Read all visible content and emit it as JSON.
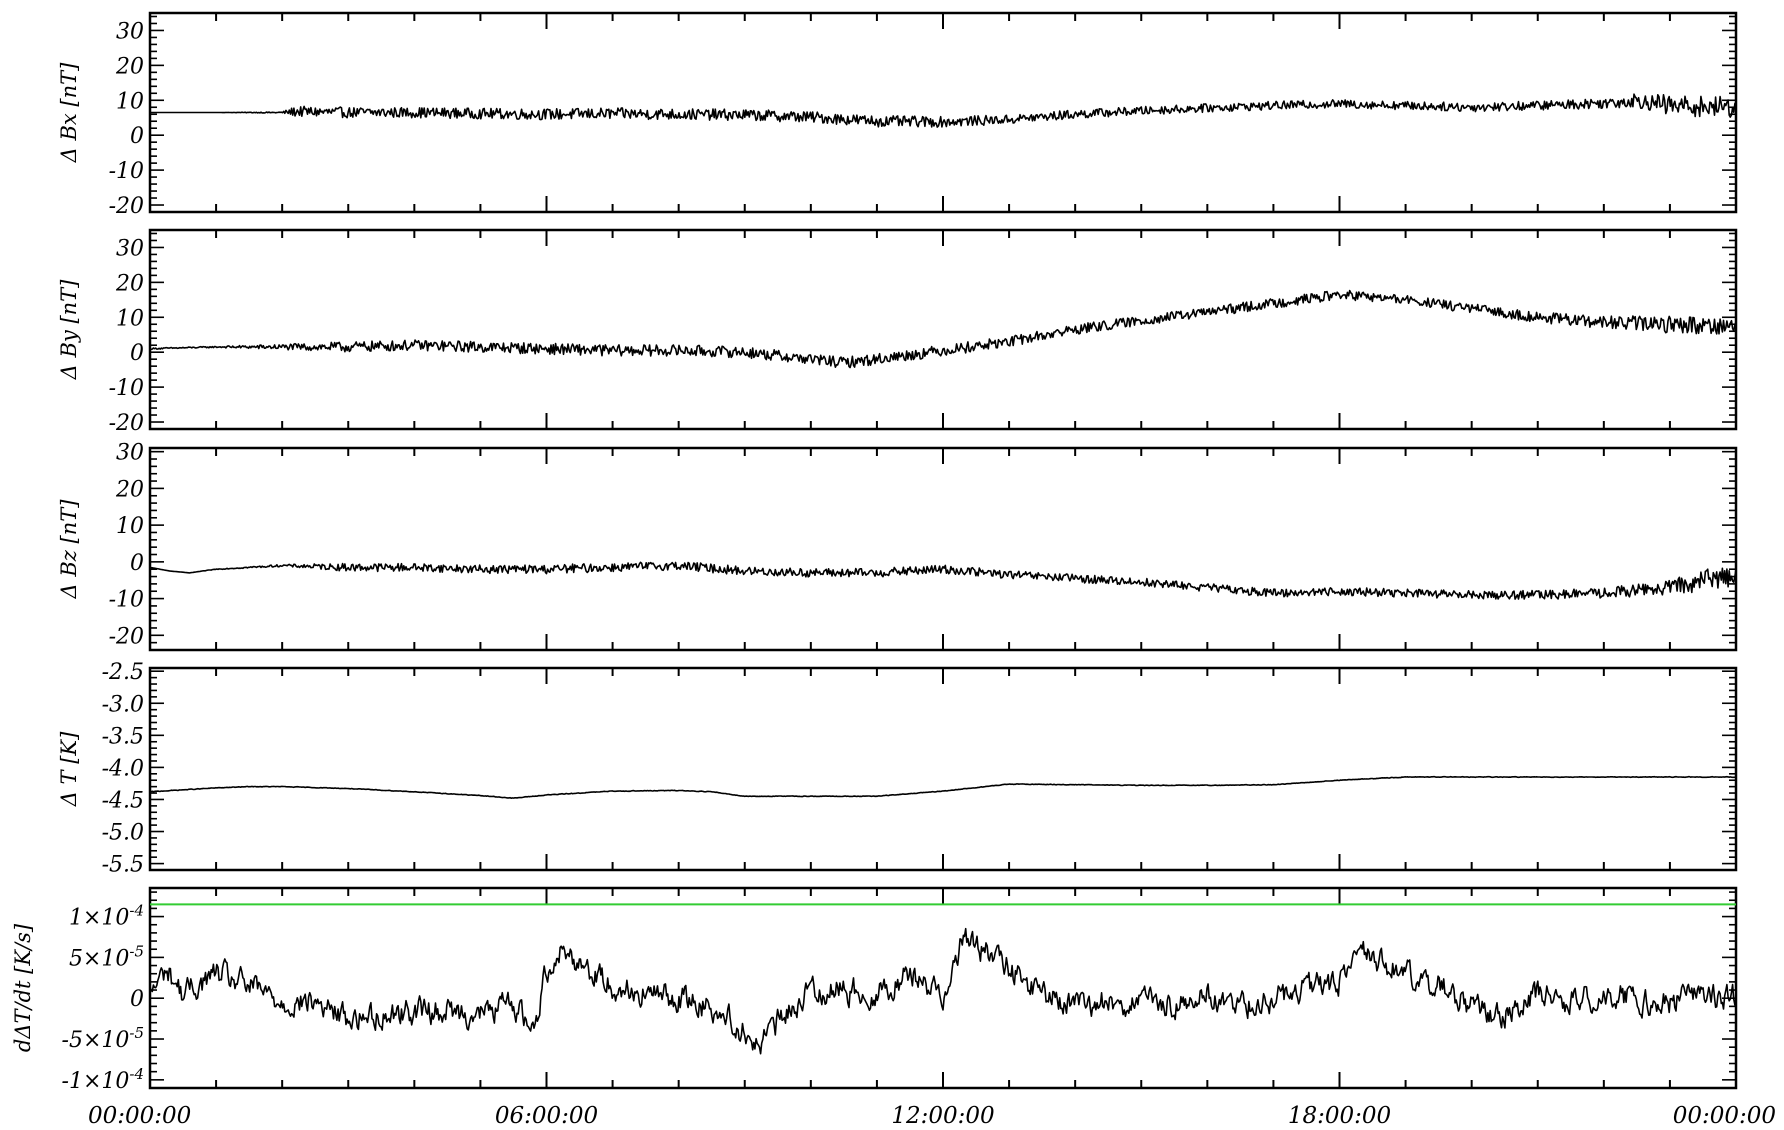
{
  "chart_data": [
    {
      "type": "line",
      "ylabel": "Δ Bx [nT]",
      "ylim": [
        -22,
        35
      ],
      "yticks": [
        {
          "value": 30,
          "label": "30"
        },
        {
          "value": 20,
          "label": "20"
        },
        {
          "value": 10,
          "label": "10"
        },
        {
          "value": 0,
          "label": "0"
        },
        {
          "value": -10,
          "label": "-10"
        },
        {
          "value": -20,
          "label": "-20"
        }
      ],
      "series": [
        {
          "x_hours": [
            0,
            1,
            2,
            2.2,
            3,
            4,
            5,
            6,
            7,
            8,
            9,
            10,
            11,
            12,
            13,
            14,
            15,
            16,
            17,
            18,
            19,
            20,
            21,
            22,
            22.5,
            23,
            24
          ],
          "values": [
            6.5,
            6.5,
            6.5,
            6.8,
            6.5,
            6.5,
            6.2,
            6,
            6.2,
            6,
            5.8,
            5.2,
            4,
            3.8,
            4.5,
            6,
            7,
            7.8,
            8.5,
            9,
            8.5,
            8,
            8.5,
            9.2,
            10,
            8.5,
            8
          ],
          "noise_amplitude": [
            0,
            0,
            0.2,
            1.5,
            1.5,
            1.5,
            1.5,
            1.6,
            1.6,
            1.6,
            1.6,
            1.6,
            1.6,
            1.5,
            1.3,
            1.3,
            1.2,
            1.2,
            1.2,
            1.2,
            1.2,
            1.3,
            1.3,
            1.5,
            2,
            3,
            3
          ]
        }
      ]
    },
    {
      "type": "line",
      "ylabel": "Δ By [nT]",
      "ylim": [
        -22,
        35
      ],
      "yticks": [
        {
          "value": 30,
          "label": "30"
        },
        {
          "value": 20,
          "label": "20"
        },
        {
          "value": 10,
          "label": "10"
        },
        {
          "value": 0,
          "label": "0"
        },
        {
          "value": -10,
          "label": "-10"
        },
        {
          "value": -20,
          "label": "-20"
        }
      ],
      "series": [
        {
          "x_hours": [
            0,
            1,
            2,
            3,
            4,
            5,
            6,
            7,
            8,
            9,
            10,
            10.5,
            11,
            12,
            13,
            14,
            15,
            16,
            17,
            18,
            19,
            20,
            21,
            22,
            23,
            24
          ],
          "values": [
            1,
            1.5,
            1.5,
            1.5,
            2,
            1.5,
            1,
            0.5,
            0.5,
            0,
            -2,
            -3,
            -2,
            0.5,
            3,
            6.5,
            9,
            11.5,
            14,
            16.5,
            15,
            12.5,
            10,
            8.5,
            8,
            7.5
          ],
          "noise_amplitude": [
            0.2,
            0.2,
            0.8,
            1.5,
            1.5,
            1.6,
            1.6,
            1.6,
            1.6,
            1.6,
            1.6,
            1.6,
            1.6,
            1.6,
            1.5,
            1.5,
            1.4,
            1.4,
            1.4,
            1.4,
            1.3,
            1.4,
            1.5,
            1.8,
            2.5,
            2.5
          ]
        }
      ]
    },
    {
      "type": "line",
      "ylabel": "Δ Bz [nT]",
      "ylim": [
        -24,
        31
      ],
      "yticks": [
        {
          "value": 30,
          "label": "30"
        },
        {
          "value": 20,
          "label": "20"
        },
        {
          "value": 10,
          "label": "10"
        },
        {
          "value": 0,
          "label": "0"
        },
        {
          "value": -10,
          "label": "-10"
        },
        {
          "value": -20,
          "label": "-20"
        }
      ],
      "series": [
        {
          "x_hours": [
            0,
            0.3,
            0.6,
            1,
            2,
            3,
            4,
            5,
            6,
            7,
            8,
            9,
            10,
            11,
            12,
            13,
            14,
            15,
            16,
            17,
            18,
            19,
            20,
            21,
            22,
            23,
            23.5,
            24
          ],
          "values": [
            -1.5,
            -2.5,
            -3,
            -2,
            -1,
            -1.5,
            -1.5,
            -2,
            -2,
            -1.5,
            -1,
            -2.5,
            -3,
            -3,
            -2,
            -3.5,
            -4.5,
            -5.5,
            -7,
            -8.5,
            -8,
            -8.5,
            -9,
            -9,
            -8.5,
            -7,
            -5,
            -3.5
          ],
          "noise_amplitude": [
            0,
            0,
            0,
            0.1,
            0.3,
            1.1,
            1.1,
            1.1,
            1.2,
            1.2,
            1.2,
            1.2,
            1.2,
            1.2,
            1.2,
            1.1,
            1.1,
            1.1,
            1.1,
            1.1,
            1.1,
            1.1,
            1.1,
            1.2,
            1.4,
            2,
            3,
            3
          ]
        }
      ]
    },
    {
      "type": "line",
      "ylabel": "Δ T [K]",
      "ylim": [
        -5.6,
        -2.45
      ],
      "yticks": [
        {
          "value": -2.5,
          "label": "-2.5"
        },
        {
          "value": -3.0,
          "label": "-3.0"
        },
        {
          "value": -3.5,
          "label": "-3.5"
        },
        {
          "value": -4.0,
          "label": "-4.0"
        },
        {
          "value": -4.5,
          "label": "-4.5"
        },
        {
          "value": -5.0,
          "label": "-5.0"
        },
        {
          "value": -5.5,
          "label": "-5.5"
        }
      ],
      "series": [
        {
          "x_hours": [
            0,
            0.5,
            1,
            1.5,
            2,
            3,
            4,
            5,
            5.5,
            6,
            7,
            8,
            8.5,
            9,
            10,
            11,
            12,
            13,
            14,
            15,
            16,
            17,
            18,
            19,
            20,
            21,
            22,
            23,
            24
          ],
          "values": [
            -4.38,
            -4.35,
            -4.32,
            -4.3,
            -4.3,
            -4.33,
            -4.38,
            -4.44,
            -4.48,
            -4.43,
            -4.37,
            -4.36,
            -4.38,
            -4.45,
            -4.45,
            -4.45,
            -4.37,
            -4.26,
            -4.27,
            -4.28,
            -4.28,
            -4.27,
            -4.2,
            -4.15,
            -4.15,
            -4.15,
            -4.15,
            -4.15,
            -4.15
          ],
          "noise_amplitude": 0.006
        }
      ]
    },
    {
      "type": "line",
      "ylabel": "dΔT/dt [K/s]",
      "ylim": [
        -0.00011,
        0.000135
      ],
      "yticks": [
        {
          "value": 0.0001,
          "label": "1×10",
          "exp": "-4"
        },
        {
          "value": 5e-05,
          "label": "5×10",
          "exp": "-5"
        },
        {
          "value": 0,
          "label": "0",
          "exp": ""
        },
        {
          "value": -5e-05,
          "label": "-5×10",
          "exp": "-5"
        },
        {
          "value": -0.0001,
          "label": "-1×10",
          "exp": "-4"
        }
      ],
      "threshold": {
        "value": 0.000115,
        "color": "#33cc33"
      },
      "series": [
        {
          "x_hours": [
            0,
            0.25,
            0.5,
            1,
            1.5,
            2,
            2.5,
            3,
            3.5,
            4,
            4.5,
            5,
            5.5,
            5.8,
            6,
            6.2,
            6.5,
            7,
            7.5,
            8,
            8.5,
            9,
            9.2,
            9.5,
            10,
            10.5,
            11,
            11.5,
            12,
            12.3,
            12.6,
            13,
            13.5,
            14,
            14.5,
            15,
            15.5,
            16,
            16.5,
            17,
            17.5,
            18,
            18.3,
            18.6,
            19,
            19.5,
            20,
            20.5,
            21,
            21.5,
            22,
            22.5,
            23,
            23.5,
            24
          ],
          "values": [
            5e-06,
            3.5e-05,
            5e-06,
            3e-05,
            1.5e-05,
            -5e-06,
            -5e-06,
            -2.5e-05,
            -2e-05,
            -1.5e-05,
            -1.5e-05,
            -2e-05,
            -5e-06,
            -4e-05,
            3.5e-05,
            6e-05,
            4.5e-05,
            1.5e-05,
            5e-06,
            0.0,
            -1e-05,
            -4e-05,
            -6e-05,
            -3e-05,
            1e-05,
            1e-05,
            5e-06,
            3e-05,
            5e-06,
            7.5e-05,
            6e-05,
            3.5e-05,
            5e-06,
            -1e-05,
            -5e-06,
            -5e-06,
            -1e-05,
            5e-06,
            -1e-05,
            0.0,
            1e-05,
            2e-05,
            6e-05,
            4.5e-05,
            3e-05,
            1.5e-05,
            -1e-05,
            -2e-05,
            5e-06,
            -5e-06,
            5e-06,
            0.0,
            -5e-06,
            5e-06,
            0.0
          ],
          "noise_amplitude": 1.8e-05
        }
      ]
    }
  ],
  "x_axis": {
    "range_hours": [
      0,
      24
    ],
    "tick_labels": [
      {
        "hour": 0,
        "label": "00:00:00"
      },
      {
        "hour": 6,
        "label": "06:00:00"
      },
      {
        "hour": 12,
        "label": "12:00:00"
      },
      {
        "hour": 18,
        "label": "18:00:00"
      },
      {
        "hour": 24,
        "label": "00:00:00"
      }
    ]
  },
  "colors": {
    "line": "#000000",
    "axes": "#000000",
    "threshold": "#33cc33",
    "background": "#ffffff"
  }
}
